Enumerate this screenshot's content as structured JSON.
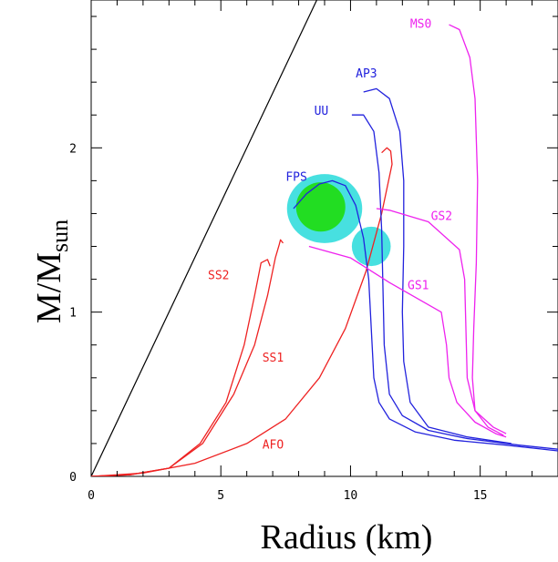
{
  "chart_data": {
    "type": "line",
    "xlabel": "Radius (km)",
    "ylabel_main": "M/M",
    "ylabel_sub": "sun",
    "xlim": [
      0,
      18
    ],
    "ylim": [
      0,
      2.9
    ],
    "x_ticks": [
      0,
      5,
      10,
      15
    ],
    "y_ticks": [
      0,
      1,
      2
    ],
    "x_tick_labels": [
      "0",
      "5",
      "10",
      "15"
    ],
    "y_tick_labels": [
      "0",
      "1",
      "2"
    ],
    "grid": false,
    "colors": {
      "red": "#ee2222",
      "blue": "#2222dd",
      "magenta": "#ee22ee",
      "green": "#22dd22",
      "cyan": "#33dddd",
      "black": "#000000"
    },
    "reference_line": {
      "color": "#000000",
      "points": [
        [
          0,
          0
        ],
        [
          8.7,
          2.9
        ]
      ]
    },
    "series": [
      {
        "name": "SS2",
        "color": "#ee2222",
        "points": [
          [
            0,
            0
          ],
          [
            1.5,
            0.01
          ],
          [
            3,
            0.05
          ],
          [
            4.2,
            0.2
          ],
          [
            5.2,
            0.45
          ],
          [
            5.9,
            0.8
          ],
          [
            6.3,
            1.1
          ],
          [
            6.55,
            1.3
          ],
          [
            6.8,
            1.32
          ],
          [
            6.9,
            1.28
          ]
        ]
      },
      {
        "name": "SS1",
        "color": "#ee2222",
        "points": [
          [
            0,
            0
          ],
          [
            1.5,
            0.01
          ],
          [
            3,
            0.05
          ],
          [
            4.3,
            0.2
          ],
          [
            5.5,
            0.5
          ],
          [
            6.3,
            0.8
          ],
          [
            6.8,
            1.1
          ],
          [
            7.1,
            1.33
          ],
          [
            7.25,
            1.41
          ],
          [
            7.3,
            1.44
          ],
          [
            7.4,
            1.42
          ]
        ]
      },
      {
        "name": "AFO",
        "color": "#ee2222",
        "points": [
          [
            0,
            0
          ],
          [
            2,
            0.02
          ],
          [
            4,
            0.08
          ],
          [
            6,
            0.2
          ],
          [
            7.5,
            0.35
          ],
          [
            8.8,
            0.6
          ],
          [
            9.8,
            0.9
          ],
          [
            10.6,
            1.25
          ],
          [
            11.2,
            1.6
          ],
          [
            11.6,
            1.9
          ],
          [
            11.55,
            1.98
          ],
          [
            11.4,
            2.0
          ],
          [
            11.2,
            1.97
          ]
        ]
      },
      {
        "name": "FPS",
        "color": "#2222dd",
        "points": [
          [
            7.8,
            1.63
          ],
          [
            8.3,
            1.72
          ],
          [
            8.8,
            1.78
          ],
          [
            9.3,
            1.8
          ],
          [
            9.8,
            1.77
          ],
          [
            10.2,
            1.65
          ],
          [
            10.5,
            1.45
          ],
          [
            10.7,
            1.2
          ],
          [
            10.8,
            0.9
          ],
          [
            10.9,
            0.6
          ],
          [
            11.1,
            0.45
          ],
          [
            11.5,
            0.35
          ],
          [
            12.5,
            0.27
          ],
          [
            14,
            0.22
          ],
          [
            16,
            0.19
          ],
          [
            18,
            0.155
          ]
        ]
      },
      {
        "name": "UU",
        "color": "#2222dd",
        "points": [
          [
            10.05,
            2.2
          ],
          [
            10.5,
            2.2
          ],
          [
            10.9,
            2.1
          ],
          [
            11.1,
            1.85
          ],
          [
            11.2,
            1.5
          ],
          [
            11.25,
            1.15
          ],
          [
            11.3,
            0.8
          ],
          [
            11.5,
            0.5
          ],
          [
            12,
            0.37
          ],
          [
            13,
            0.28
          ],
          [
            14.5,
            0.23
          ],
          [
            16.5,
            0.19
          ],
          [
            18,
            0.165
          ]
        ]
      },
      {
        "name": "AP3",
        "color": "#2222dd",
        "points": [
          [
            10.5,
            2.34
          ],
          [
            11,
            2.36
          ],
          [
            11.5,
            2.3
          ],
          [
            11.9,
            2.1
          ],
          [
            12.05,
            1.8
          ],
          [
            12.05,
            1.4
          ],
          [
            12.0,
            1.0
          ],
          [
            12.05,
            0.7
          ],
          [
            12.3,
            0.45
          ],
          [
            13,
            0.3
          ],
          [
            14.5,
            0.24
          ],
          [
            16.2,
            0.2
          ]
        ]
      },
      {
        "name": "MS0",
        "color": "#ee22ee",
        "points": [
          [
            13.8,
            2.75
          ],
          [
            14.2,
            2.72
          ],
          [
            14.6,
            2.55
          ],
          [
            14.8,
            2.3
          ],
          [
            14.9,
            1.8
          ],
          [
            14.85,
            1.3
          ],
          [
            14.75,
            0.9
          ],
          [
            14.7,
            0.6
          ],
          [
            14.8,
            0.4
          ],
          [
            15.3,
            0.3
          ],
          [
            15.9,
            0.25
          ]
        ]
      },
      {
        "name": "GS2",
        "color": "#ee22ee",
        "points": [
          [
            11.0,
            1.63
          ],
          [
            11.5,
            1.62
          ],
          [
            13.0,
            1.55
          ],
          [
            14.2,
            1.38
          ],
          [
            14.4,
            1.2
          ],
          [
            14.45,
            0.9
          ],
          [
            14.5,
            0.6
          ],
          [
            14.8,
            0.4
          ],
          [
            15.5,
            0.3
          ],
          [
            16.0,
            0.26
          ]
        ]
      },
      {
        "name": "GS1",
        "color": "#ee22ee",
        "points": [
          [
            8.4,
            1.4
          ],
          [
            10,
            1.33
          ],
          [
            11.5,
            1.18
          ],
          [
            13.5,
            1.0
          ],
          [
            13.7,
            0.8
          ],
          [
            13.8,
            0.6
          ],
          [
            14.1,
            0.45
          ],
          [
            14.8,
            0.33
          ],
          [
            15.6,
            0.26
          ],
          [
            16.0,
            0.24
          ]
        ]
      }
    ],
    "labels": [
      {
        "text": "SS2",
        "color": "#ee2222",
        "x": 4.5,
        "y": 1.2
      },
      {
        "text": "SS1",
        "color": "#ee2222",
        "x": 6.6,
        "y": 0.7
      },
      {
        "text": "AFO",
        "color": "#ee2222",
        "x": 6.6,
        "y": 0.17
      },
      {
        "text": "FPS",
        "color": "#2222dd",
        "x": 7.5,
        "y": 1.8
      },
      {
        "text": "UU",
        "color": "#2222dd",
        "x": 8.6,
        "y": 2.2
      },
      {
        "text": "AP3",
        "color": "#2222dd",
        "x": 10.2,
        "y": 2.43
      },
      {
        "text": "MS0",
        "color": "#ee22ee",
        "x": 12.3,
        "y": 2.73
      },
      {
        "text": "GS2",
        "color": "#ee22ee",
        "x": 13.1,
        "y": 1.56
      },
      {
        "text": "GS1",
        "color": "#ee22ee",
        "x": 12.2,
        "y": 1.14
      }
    ],
    "regions": [
      {
        "kind": "ellipse",
        "color": "#33dddd",
        "cx": 9.0,
        "cy": 1.63,
        "rx": 1.45,
        "ry": 0.21,
        "opacity": 0.9
      },
      {
        "kind": "ellipse",
        "color": "#33dddd",
        "cx": 10.8,
        "cy": 1.4,
        "rx": 0.75,
        "ry": 0.12,
        "opacity": 0.9
      },
      {
        "kind": "ellipse",
        "color": "#22dd22",
        "cx": 8.85,
        "cy": 1.64,
        "rx": 0.95,
        "ry": 0.15,
        "opacity": 1.0
      }
    ]
  }
}
